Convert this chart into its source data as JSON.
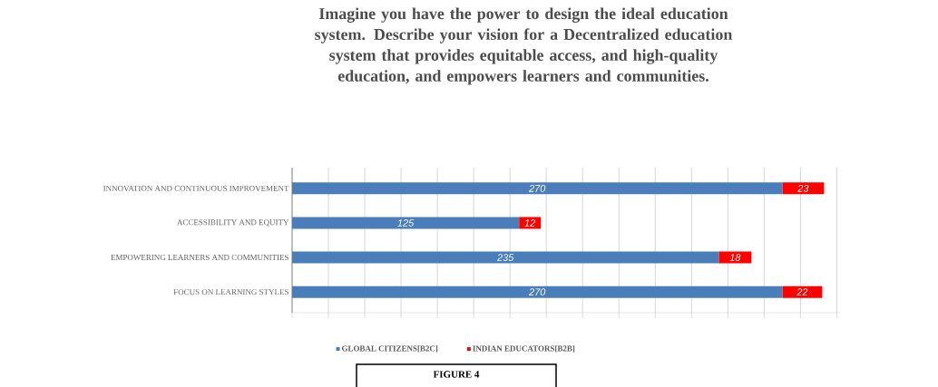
{
  "chart_data": {
    "type": "bar",
    "orientation": "horizontal",
    "stacked": true,
    "title": "Imagine you have the power to design the ideal education system. Describe your vision for a Decentralized education system that provides equitable access, and high-quality education, and empowers learners and communities.",
    "categories": [
      "INNOVATION AND CONTINUOUS IMPROVEMENT",
      "ACCESSIBILITY AND EQUITY",
      "EMPOWERING LEARNERS AND COMMUNITIES",
      "FOCUS ON LEARNING STYLES"
    ],
    "series": [
      {
        "name": "GLOBAL CITIZENS[B2C]",
        "color": "#4a7ebb",
        "values": [
          270,
          125,
          235,
          270
        ]
      },
      {
        "name": "INDIAN EDUCATORS[B2B]",
        "color": "#ff0000",
        "values": [
          23,
          12,
          18,
          22
        ]
      }
    ],
    "tick_labels": "y",
    "grid": "x",
    "legend": "bottom",
    "data_labels": true,
    "annotations": [
      "FIGURE 4"
    ]
  }
}
